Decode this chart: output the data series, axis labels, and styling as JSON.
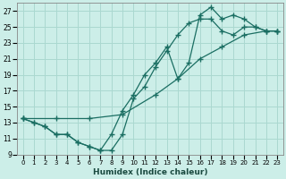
{
  "xlabel": "Humidex (Indice chaleur)",
  "xlim": [
    -0.5,
    23.5
  ],
  "ylim": [
    9,
    28
  ],
  "yticks": [
    9,
    11,
    13,
    15,
    17,
    19,
    21,
    23,
    25,
    27
  ],
  "xticks": [
    0,
    1,
    2,
    3,
    4,
    5,
    6,
    7,
    8,
    9,
    10,
    11,
    12,
    13,
    14,
    15,
    16,
    17,
    18,
    19,
    20,
    21,
    22,
    23
  ],
  "bg_color": "#cceee8",
  "grid_color": "#aad8d0",
  "line_color": "#1a6e62",
  "line1_x": [
    0,
    1,
    2,
    3,
    4,
    5,
    6,
    7,
    8,
    9,
    10,
    11,
    12,
    13,
    14,
    15,
    16,
    17,
    18,
    19,
    20,
    21,
    22,
    23
  ],
  "line1_y": [
    13.5,
    13.0,
    12.5,
    11.5,
    11.5,
    10.5,
    10.0,
    9.5,
    11.5,
    14.5,
    16.5,
    19.0,
    20.5,
    22.5,
    18.5,
    20.5,
    26.5,
    27.5,
    26.0,
    26.5,
    26.0,
    25.0,
    24.5,
    24.5
  ],
  "line2_x": [
    0,
    1,
    2,
    3,
    4,
    5,
    6,
    7,
    8,
    9,
    10,
    11,
    12,
    13,
    14,
    15,
    16,
    17,
    18,
    19,
    20,
    21,
    22,
    23
  ],
  "line2_y": [
    13.5,
    13.0,
    12.5,
    11.5,
    11.5,
    10.5,
    10.0,
    9.5,
    9.5,
    11.5,
    16.0,
    17.5,
    20.0,
    22.0,
    24.0,
    25.5,
    26.0,
    26.0,
    24.5,
    24.0,
    25.0,
    25.0,
    24.5,
    24.5
  ],
  "line3_x": [
    0,
    3,
    6,
    9,
    12,
    14,
    16,
    18,
    20,
    22,
    23
  ],
  "line3_y": [
    13.5,
    13.5,
    13.5,
    14.0,
    16.5,
    18.5,
    21.0,
    22.5,
    24.0,
    24.5,
    24.5
  ]
}
